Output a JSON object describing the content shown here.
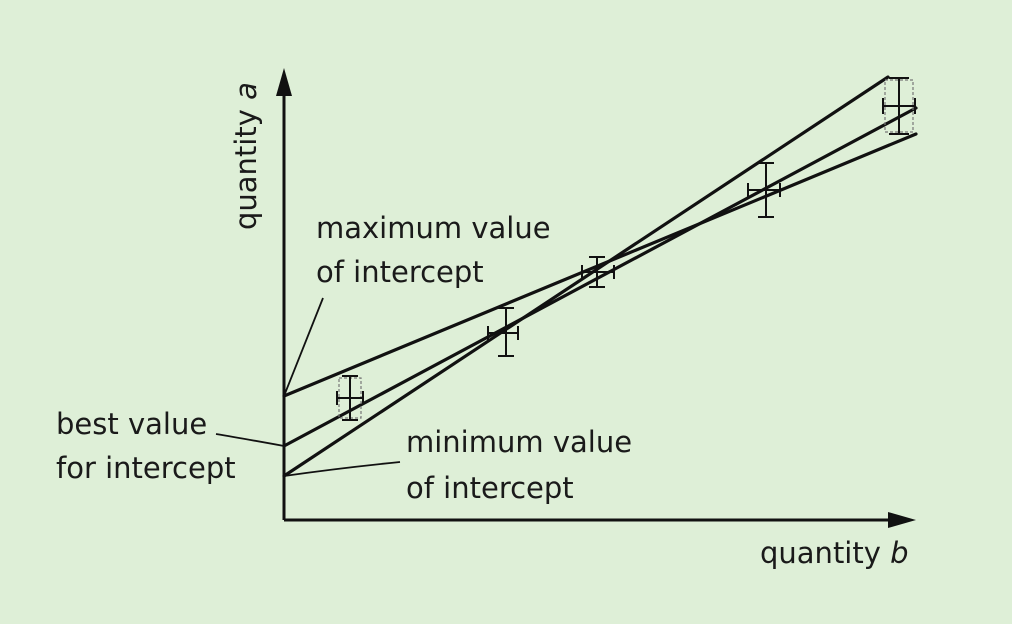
{
  "axes": {
    "y_label_prefix": "quantity ",
    "y_label_var": "a",
    "x_label_prefix": "quantity ",
    "x_label_var": "b"
  },
  "annotations": {
    "max_intercept_line1": "maximum value",
    "max_intercept_line2": "of intercept",
    "best_intercept_line1": "best value",
    "best_intercept_line2": "for intercept",
    "min_intercept_line1": "minimum value",
    "min_intercept_line2": "of intercept"
  },
  "data_points": [
    {
      "x": 1,
      "y": 1.0
    },
    {
      "x": 2,
      "y": 2.0
    },
    {
      "x": 3,
      "y": 3.0
    },
    {
      "x": 4,
      "y": 4.0
    },
    {
      "x": 5,
      "y": 5.0
    }
  ],
  "lines": [
    {
      "name": "maximum value of intercept",
      "intercept": "high",
      "slope": "low"
    },
    {
      "name": "best value for intercept",
      "intercept": "mid",
      "slope": "mid"
    },
    {
      "name": "minimum value of intercept",
      "intercept": "low",
      "slope": "high"
    }
  ]
}
